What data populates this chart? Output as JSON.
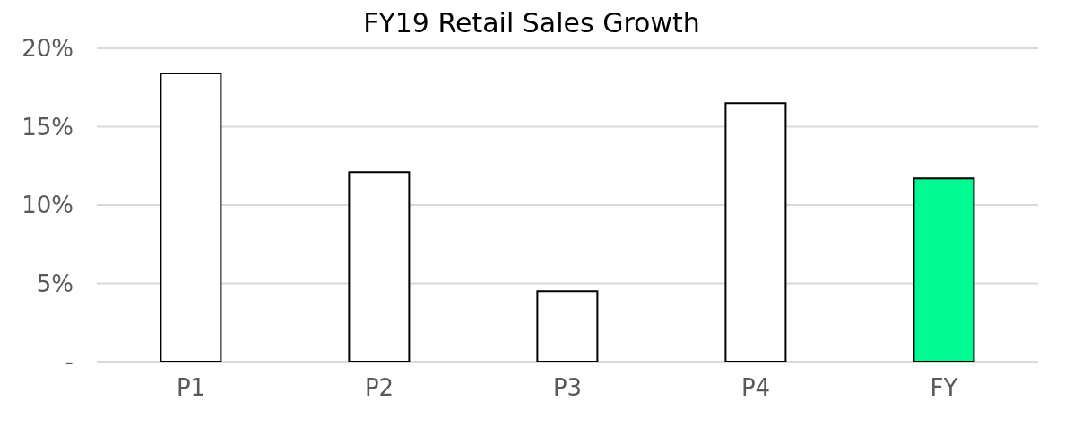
{
  "chart_data": {
    "type": "bar",
    "title": "FY19 Retail Sales Growth",
    "categories": [
      "P1",
      "P2",
      "P3",
      "P4",
      "FY"
    ],
    "values": [
      18.4,
      12.1,
      4.5,
      16.5,
      11.7
    ],
    "colors": [
      "#ffffff",
      "#ffffff",
      "#ffffff",
      "#ffffff",
      "#00f990"
    ],
    "ylim": [
      0,
      20
    ],
    "yticks": [
      {
        "value": 0,
        "label": "-"
      },
      {
        "value": 5,
        "label": "5%"
      },
      {
        "value": 10,
        "label": "10%"
      },
      {
        "value": 15,
        "label": "15%"
      },
      {
        "value": 20,
        "label": "20%"
      }
    ],
    "grid": "y"
  }
}
